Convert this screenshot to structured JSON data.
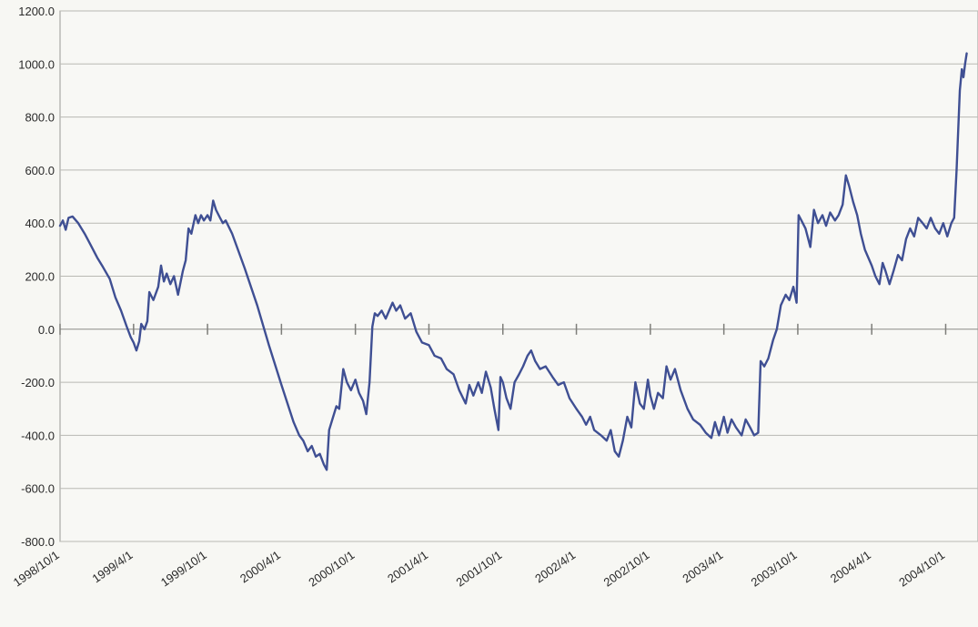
{
  "chart_data": {
    "type": "line",
    "title": "",
    "xlabel": "",
    "ylabel": "",
    "ylim": [
      -800,
      1200
    ],
    "xlim": [
      "1998/10/1",
      "2004/12/20"
    ],
    "grid": true,
    "legend": "none",
    "line_color": "#3f4f93",
    "y_ticks": [
      1200,
      1000,
      800,
      600,
      400,
      200,
      0,
      -200,
      -400,
      -600,
      -800
    ],
    "y_tick_labels": [
      "1200.0",
      "1000.0",
      "800.0",
      "600.0",
      "400.0",
      "200.0",
      "0.0",
      "-200.0",
      "-400.0",
      "-600.0",
      "-800.0"
    ],
    "x_ticks": [
      "1998/10/1",
      "1999/4/1",
      "1999/10/1",
      "2000/4/1",
      "2000/10/1",
      "2001/4/1",
      "2001/10/1",
      "2002/4/1",
      "2002/10/1",
      "2003/4/1",
      "2003/10/1",
      "2004/4/1",
      "2004/10/1"
    ],
    "x_tick_labels": [
      "1998/10/1",
      "1999/4/1",
      "1999/10/1",
      "2000/4/1",
      "2000/10/1",
      "2001/4/1",
      "2001/10/1",
      "2002/4/1",
      "2002/10/1",
      "2003/4/1",
      "2003/10/1",
      "2004/4/1",
      "2004/10/1"
    ],
    "series": [
      {
        "points": [
          [
            "1998/10/1",
            390
          ],
          [
            "1998/10/8",
            410
          ],
          [
            "1998/10/15",
            375
          ],
          [
            "1998/10/22",
            420
          ],
          [
            "1998/11/1",
            425
          ],
          [
            "1998/11/15",
            400
          ],
          [
            "1998/12/1",
            360
          ],
          [
            "1998/12/15",
            320
          ],
          [
            "1999/1/1",
            270
          ],
          [
            "1999/1/15",
            235
          ],
          [
            "1999/2/1",
            190
          ],
          [
            "1999/2/15",
            120
          ],
          [
            "1999/3/1",
            70
          ],
          [
            "1999/3/15",
            10
          ],
          [
            "1999/3/25",
            -30
          ],
          [
            "1999/4/1",
            -50
          ],
          [
            "1999/4/8",
            -80
          ],
          [
            "1999/4/15",
            -45
          ],
          [
            "1999/4/20",
            20
          ],
          [
            "1999/4/28",
            0
          ],
          [
            "1999/5/5",
            30
          ],
          [
            "1999/5/10",
            140
          ],
          [
            "1999/5/20",
            110
          ],
          [
            "1999/6/1",
            160
          ],
          [
            "1999/6/8",
            240
          ],
          [
            "1999/6/15",
            180
          ],
          [
            "1999/6/22",
            210
          ],
          [
            "1999/7/1",
            170
          ],
          [
            "1999/7/10",
            200
          ],
          [
            "1999/7/20",
            130
          ],
          [
            "1999/8/1",
            220
          ],
          [
            "1999/8/8",
            260
          ],
          [
            "1999/8/15",
            380
          ],
          [
            "1999/8/22",
            360
          ],
          [
            "1999/9/1",
            430
          ],
          [
            "1999/9/8",
            400
          ],
          [
            "1999/9/15",
            430
          ],
          [
            "1999/9/22",
            410
          ],
          [
            "1999/10/1",
            430
          ],
          [
            "1999/10/8",
            410
          ],
          [
            "1999/10/15",
            485
          ],
          [
            "1999/10/22",
            450
          ],
          [
            "1999/11/1",
            420
          ],
          [
            "1999/11/8",
            400
          ],
          [
            "1999/11/15",
            410
          ],
          [
            "1999/12/1",
            360
          ],
          [
            "2000/1/1",
            230
          ],
          [
            "2000/2/1",
            90
          ],
          [
            "2000/3/1",
            -60
          ],
          [
            "2000/4/1",
            -210
          ],
          [
            "2000/5/1",
            -350
          ],
          [
            "2000/5/15",
            -400
          ],
          [
            "2000/5/25",
            -420
          ],
          [
            "2000/6/5",
            -460
          ],
          [
            "2000/6/15",
            -440
          ],
          [
            "2000/6/25",
            -480
          ],
          [
            "2000/7/5",
            -470
          ],
          [
            "2000/7/15",
            -510
          ],
          [
            "2000/7/22",
            -530
          ],
          [
            "2000/7/28",
            -380
          ],
          [
            "2000/8/5",
            -340
          ],
          [
            "2000/8/15",
            -290
          ],
          [
            "2000/8/22",
            -300
          ],
          [
            "2000/9/1",
            -150
          ],
          [
            "2000/9/10",
            -200
          ],
          [
            "2000/9/20",
            -230
          ],
          [
            "2000/10/1",
            -190
          ],
          [
            "2000/10/10",
            -240
          ],
          [
            "2000/10/20",
            -270
          ],
          [
            "2000/10/28",
            -320
          ],
          [
            "2000/11/5",
            -200
          ],
          [
            "2000/11/12",
            10
          ],
          [
            "2000/11/18",
            60
          ],
          [
            "2000/11/25",
            50
          ],
          [
            "2000/12/5",
            70
          ],
          [
            "2000/12/15",
            40
          ],
          [
            "2001/1/1",
            100
          ],
          [
            "2001/1/10",
            70
          ],
          [
            "2001/1/20",
            90
          ],
          [
            "2001/2/1",
            40
          ],
          [
            "2001/2/15",
            60
          ],
          [
            "2001/3/1",
            -10
          ],
          [
            "2001/3/15",
            -50
          ],
          [
            "2001/4/1",
            -60
          ],
          [
            "2001/4/15",
            -100
          ],
          [
            "2001/5/1",
            -110
          ],
          [
            "2001/5/15",
            -150
          ],
          [
            "2001/6/1",
            -170
          ],
          [
            "2001/6/15",
            -230
          ],
          [
            "2001/7/1",
            -280
          ],
          [
            "2001/7/10",
            -210
          ],
          [
            "2001/7/20",
            -250
          ],
          [
            "2001/8/1",
            -200
          ],
          [
            "2001/8/10",
            -240
          ],
          [
            "2001/8/20",
            -160
          ],
          [
            "2001/9/1",
            -220
          ],
          [
            "2001/9/10",
            -300
          ],
          [
            "2001/9/20",
            -380
          ],
          [
            "2001/9/25",
            -180
          ],
          [
            "2001/10/1",
            -200
          ],
          [
            "2001/10/10",
            -260
          ],
          [
            "2001/10/20",
            -300
          ],
          [
            "2001/10/30",
            -200
          ],
          [
            "2001/11/10",
            -170
          ],
          [
            "2001/11/20",
            -140
          ],
          [
            "2001/12/1",
            -100
          ],
          [
            "2001/12/10",
            -80
          ],
          [
            "2001/12/20",
            -120
          ],
          [
            "2002/1/1",
            -150
          ],
          [
            "2002/1/15",
            -140
          ],
          [
            "2002/2/1",
            -180
          ],
          [
            "2002/2/15",
            -210
          ],
          [
            "2002/3/1",
            -200
          ],
          [
            "2002/3/15",
            -260
          ],
          [
            "2002/4/1",
            -300
          ],
          [
            "2002/4/15",
            -330
          ],
          [
            "2002/4/25",
            -360
          ],
          [
            "2002/5/5",
            -330
          ],
          [
            "2002/5/15",
            -380
          ],
          [
            "2002/6/1",
            -400
          ],
          [
            "2002/6/15",
            -420
          ],
          [
            "2002/6/25",
            -380
          ],
          [
            "2002/7/5",
            -460
          ],
          [
            "2002/7/15",
            -480
          ],
          [
            "2002/7/25",
            -420
          ],
          [
            "2002/8/5",
            -330
          ],
          [
            "2002/8/15",
            -370
          ],
          [
            "2002/8/25",
            -200
          ],
          [
            "2002/9/5",
            -280
          ],
          [
            "2002/9/15",
            -300
          ],
          [
            "2002/9/25",
            -190
          ],
          [
            "2002/10/1",
            -250
          ],
          [
            "2002/10/10",
            -300
          ],
          [
            "2002/10/20",
            -240
          ],
          [
            "2002/11/1",
            -260
          ],
          [
            "2002/11/10",
            -140
          ],
          [
            "2002/11/20",
            -190
          ],
          [
            "2002/12/1",
            -150
          ],
          [
            "2002/12/15",
            -230
          ],
          [
            "2003/1/1",
            -300
          ],
          [
            "2003/1/15",
            -340
          ],
          [
            "2003/2/1",
            -360
          ],
          [
            "2003/2/15",
            -390
          ],
          [
            "2003/3/1",
            -410
          ],
          [
            "2003/3/10",
            -350
          ],
          [
            "2003/3/20",
            -400
          ],
          [
            "2003/4/1",
            -330
          ],
          [
            "2003/4/10",
            -390
          ],
          [
            "2003/4/20",
            -340
          ],
          [
            "2003/5/1",
            -370
          ],
          [
            "2003/5/15",
            -400
          ],
          [
            "2003/5/25",
            -340
          ],
          [
            "2003/6/5",
            -370
          ],
          [
            "2003/6/15",
            -400
          ],
          [
            "2003/6/25",
            -390
          ],
          [
            "2003/7/1",
            -120
          ],
          [
            "2003/7/10",
            -140
          ],
          [
            "2003/7/20",
            -110
          ],
          [
            "2003/8/1",
            -40
          ],
          [
            "2003/8/10",
            0
          ],
          [
            "2003/8/20",
            90
          ],
          [
            "2003/9/1",
            130
          ],
          [
            "2003/9/10",
            110
          ],
          [
            "2003/9/20",
            160
          ],
          [
            "2003/9/28",
            100
          ],
          [
            "2003/10/3",
            430
          ],
          [
            "2003/10/10",
            410
          ],
          [
            "2003/10/20",
            380
          ],
          [
            "2003/11/1",
            310
          ],
          [
            "2003/11/10",
            450
          ],
          [
            "2003/11/20",
            400
          ],
          [
            "2003/12/1",
            430
          ],
          [
            "2003/12/10",
            390
          ],
          [
            "2003/12/20",
            440
          ],
          [
            "2004/1/1",
            410
          ],
          [
            "2004/1/10",
            430
          ],
          [
            "2004/1/20",
            470
          ],
          [
            "2004/1/28",
            580
          ],
          [
            "2004/2/5",
            540
          ],
          [
            "2004/2/15",
            480
          ],
          [
            "2004/2/25",
            430
          ],
          [
            "2004/3/5",
            360
          ],
          [
            "2004/3/15",
            300
          ],
          [
            "2004/4/1",
            240
          ],
          [
            "2004/4/10",
            200
          ],
          [
            "2004/4/20",
            170
          ],
          [
            "2004/4/28",
            250
          ],
          [
            "2004/5/5",
            220
          ],
          [
            "2004/5/15",
            170
          ],
          [
            "2004/5/25",
            220
          ],
          [
            "2004/6/5",
            280
          ],
          [
            "2004/6/15",
            260
          ],
          [
            "2004/6/25",
            340
          ],
          [
            "2004/7/5",
            380
          ],
          [
            "2004/7/15",
            350
          ],
          [
            "2004/7/25",
            420
          ],
          [
            "2004/8/5",
            400
          ],
          [
            "2004/8/15",
            380
          ],
          [
            "2004/8/25",
            420
          ],
          [
            "2004/9/5",
            380
          ],
          [
            "2004/9/15",
            360
          ],
          [
            "2004/9/25",
            400
          ],
          [
            "2004/10/5",
            350
          ],
          [
            "2004/10/15",
            400
          ],
          [
            "2004/10/22",
            420
          ],
          [
            "2004/10/28",
            600
          ],
          [
            "2004/11/1",
            750
          ],
          [
            "2004/11/5",
            900
          ],
          [
            "2004/11/10",
            980
          ],
          [
            "2004/11/14",
            950
          ],
          [
            "2004/11/18",
            1000
          ],
          [
            "2004/11/22",
            1040
          ]
        ]
      }
    ]
  }
}
